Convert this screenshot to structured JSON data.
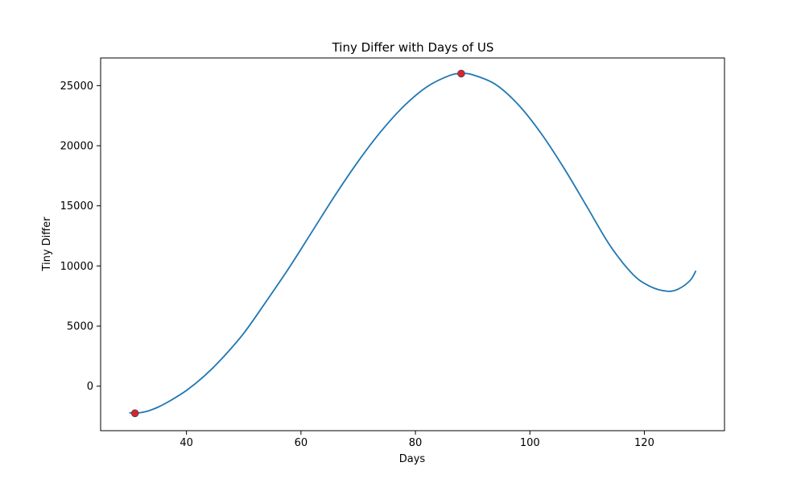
{
  "chart_data": {
    "type": "line",
    "title": "Tiny Differ with Days of US",
    "xlabel": "Days",
    "ylabel": "Tiny Differ",
    "xlim": [
      25,
      134
    ],
    "ylim": [
      -3700,
      27300
    ],
    "xticks": [
      40,
      60,
      80,
      100,
      120
    ],
    "yticks": [
      0,
      5000,
      10000,
      15000,
      20000,
      25000
    ],
    "grid": false,
    "line_color": "#1f77b4",
    "marker_color": "#d62728",
    "series": [
      {
        "x": [
          30,
          31,
          33,
          35,
          37,
          40,
          43,
          46,
          50,
          54,
          58,
          62,
          66,
          70,
          74,
          78,
          82,
          86,
          88,
          90,
          94,
          98,
          102,
          106,
          110,
          114,
          118,
          121,
          124,
          126,
          128,
          129
        ],
        "values": [
          -2200,
          -2250,
          -2100,
          -1750,
          -1250,
          -350,
          800,
          2200,
          4400,
          7100,
          9900,
          12900,
          15900,
          18700,
          21200,
          23300,
          24900,
          25850,
          26000,
          25900,
          25100,
          23400,
          21000,
          18100,
          14900,
          11700,
          9300,
          8300,
          7900,
          8100,
          8800,
          9600
        ]
      }
    ],
    "markers": [
      {
        "x": 31,
        "y": -2250
      },
      {
        "x": 88,
        "y": 26000
      }
    ]
  }
}
